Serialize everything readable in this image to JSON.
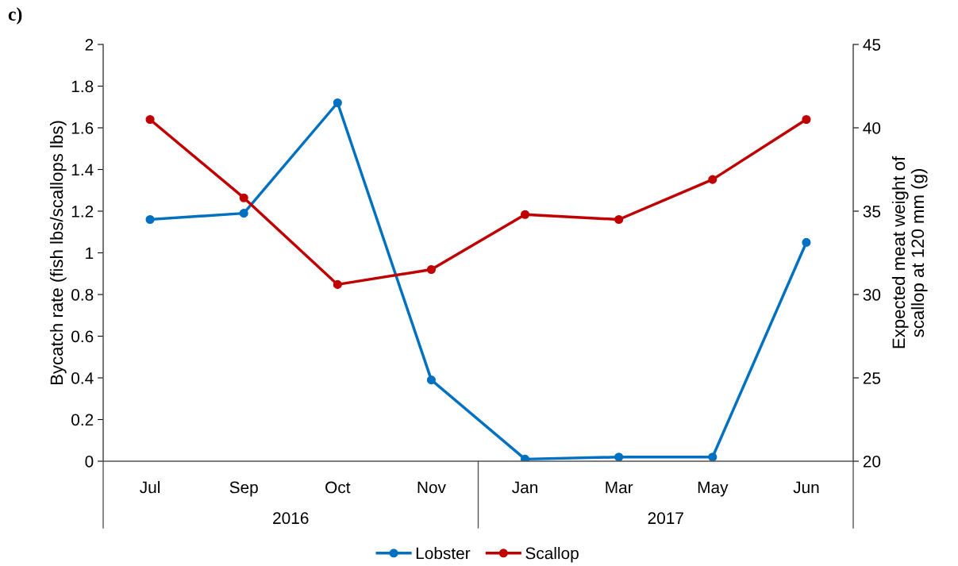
{
  "chart_data": {
    "type": "line",
    "categories": [
      "Jul",
      "Sep",
      "Oct",
      "Nov",
      "Jan",
      "Mar",
      "May",
      "Jun"
    ],
    "series": [
      {
        "name": "Lobster",
        "color": "#0070c0",
        "values": [
          1.16,
          1.19,
          1.72,
          0.39,
          0.01,
          0.02,
          0.02,
          1.05
        ]
      },
      {
        "name": "Scallop",
        "color": "#c00000",
        "axis": "y2",
        "values": [
          40.5,
          35.8,
          30.6,
          31.5,
          34.8,
          34.5,
          36.9,
          40.5
        ]
      }
    ],
    "ylabel": "Bycatch rate (fish lbs/scallops lbs)",
    "y2label": "Expected meat weight of\nscallop at 120 mm (g)",
    "ylim": [
      0,
      2
    ],
    "yticks": [
      0,
      0.2,
      0.4,
      0.6,
      0.8,
      1,
      1.2,
      1.4,
      1.6,
      1.8,
      2
    ],
    "y2lim": [
      20,
      45
    ],
    "y2ticks": [
      20,
      25,
      30,
      35,
      40,
      45
    ],
    "annotations": [
      "c)",
      "2016",
      "2017"
    ],
    "marker": "circle",
    "line_style": "solid",
    "grid": false,
    "legend": "bottom"
  }
}
